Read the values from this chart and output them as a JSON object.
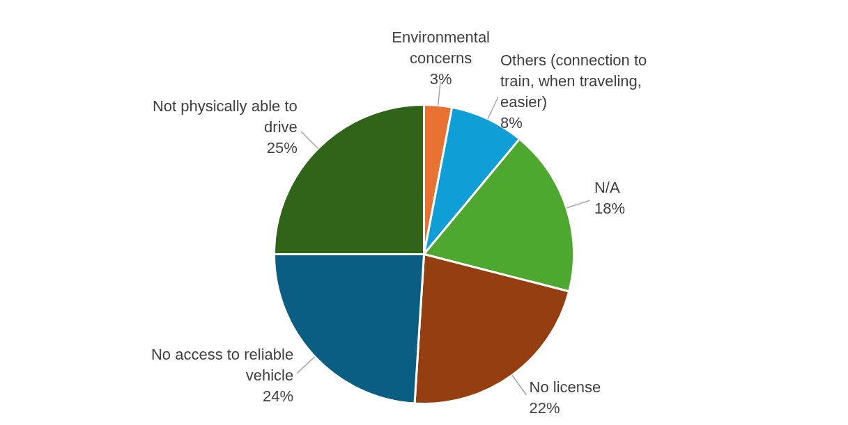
{
  "chart_data": {
    "type": "pie",
    "categories": [
      "Environmental concerns",
      "Others (connection to train, when traveling, easier)",
      "N/A",
      "No license",
      "No access to reliable vehicle",
      "Not physically able to drive"
    ],
    "values": [
      3,
      8,
      18,
      22,
      24,
      25
    ],
    "value_labels": [
      "3%",
      "8%",
      "18%",
      "22%",
      "24%",
      "25%"
    ],
    "colors": [
      "#e97132",
      "#0f9ed5",
      "#4ea72e",
      "#953f11",
      "#0a5e81",
      "#306519"
    ],
    "legend": false
  }
}
